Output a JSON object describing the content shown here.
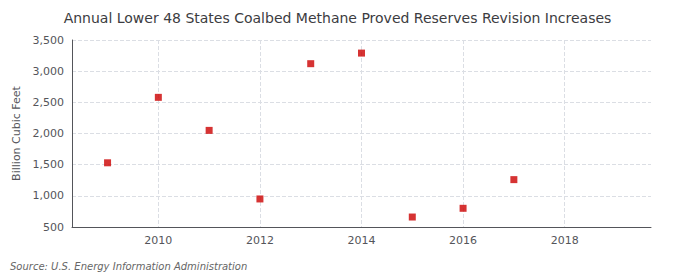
{
  "chart_data": {
    "type": "scatter",
    "title": "Annual Lower 48 States Coalbed Methane Proved Reserves Revision Increases",
    "ylabel": "Billion Cubic Feet",
    "annotations": [
      "Source: U.S. Energy Information Administration"
    ],
    "x": [
      2009,
      2010,
      2011,
      2012,
      2013,
      2014,
      2015,
      2016,
      2017
    ],
    "values": [
      1530,
      2580,
      2050,
      950,
      3120,
      3290,
      660,
      800,
      1260
    ],
    "color": "#cc0000",
    "marker": "square",
    "xlim": [
      2008.3,
      2019.7
    ],
    "xticks": [
      2010,
      2012,
      2014,
      2016,
      2018
    ],
    "ylim": [
      500,
      3500
    ],
    "yticks": [
      500,
      {
        "value": 1000,
        "label": "1,000"
      },
      {
        "value": 1500,
        "label": "1,500"
      },
      {
        "value": 2000,
        "label": "2,000"
      },
      {
        "value": 2500,
        "label": "2,500"
      },
      {
        "value": 3000,
        "label": "3,000"
      },
      {
        "value": 3500,
        "label": "3,500"
      }
    ],
    "grid": true
  }
}
